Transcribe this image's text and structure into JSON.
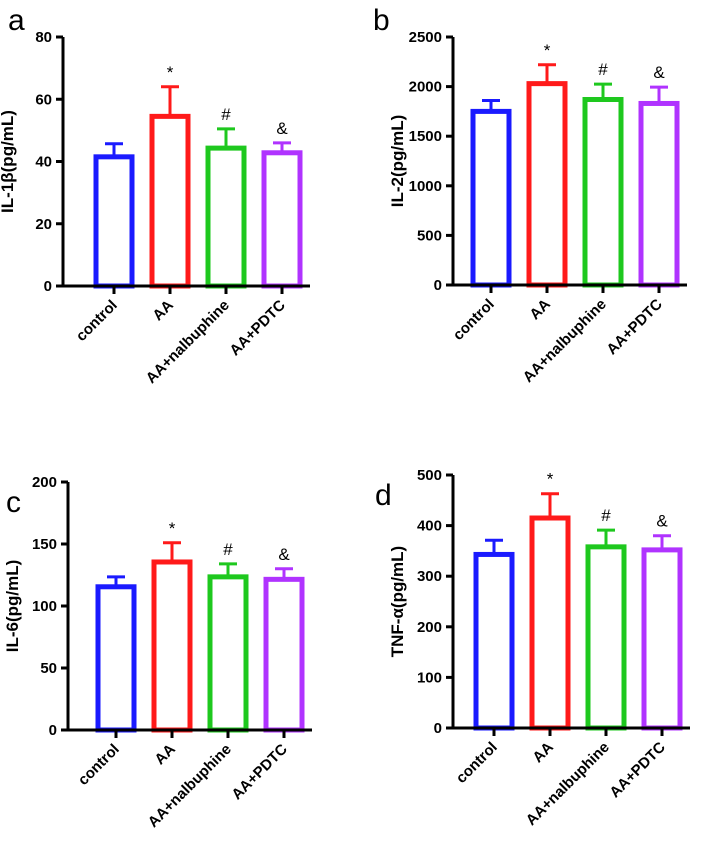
{
  "figure": {
    "categories": [
      "control",
      "AA",
      "AA+nalbuphine",
      "AA+PDTC"
    ],
    "colors": [
      "#1a1aff",
      "#ff1a1a",
      "#1ec81e",
      "#b033ff"
    ]
  },
  "chart_data": [
    {
      "type": "bar",
      "panel": "a",
      "title": "",
      "xlabel": "",
      "ylabel": "IL-1β(pg/mL)",
      "ylim": [
        0,
        80
      ],
      "yticks": [
        "0",
        "20",
        "40",
        "60",
        "80"
      ],
      "categories": [
        "control",
        "AA",
        "AA+nalbuphine",
        "AA+PDTC"
      ],
      "values": [
        41.5,
        54.5,
        44.3,
        42.8
      ],
      "errors": [
        4.2,
        9.5,
        6.2,
        3.2
      ],
      "annotations": [
        "",
        "*",
        "#",
        "&"
      ]
    },
    {
      "type": "bar",
      "panel": "b",
      "title": "",
      "xlabel": "",
      "ylabel": "IL-2(pg/mL)",
      "ylim": [
        0,
        2500
      ],
      "yticks": [
        "0",
        "500",
        "1000",
        "1500",
        "2000",
        "2500"
      ],
      "categories": [
        "control",
        "AA",
        "AA+nalbuphine",
        "AA+PDTC"
      ],
      "values": [
        1750,
        2030,
        1870,
        1830
      ],
      "errors": [
        110,
        190,
        155,
        165
      ],
      "annotations": [
        "",
        "*",
        "#",
        "&"
      ]
    },
    {
      "type": "bar",
      "panel": "c",
      "title": "",
      "xlabel": "",
      "ylabel": "IL-6(pg/mL)",
      "ylim": [
        0,
        200
      ],
      "yticks": [
        "0",
        "50",
        "100",
        "150",
        "200"
      ],
      "categories": [
        "control",
        "AA",
        "AA+nalbuphine",
        "AA+PDTC"
      ],
      "values": [
        115.5,
        135.5,
        123.5,
        121.5
      ],
      "errors": [
        8,
        15.5,
        10.5,
        8.5
      ],
      "annotations": [
        "",
        "*",
        "#",
        "&"
      ]
    },
    {
      "type": "bar",
      "panel": "d",
      "title": "",
      "xlabel": "",
      "ylabel": "TNF-α(pg/mL)",
      "ylim": [
        0,
        500
      ],
      "yticks": [
        "0",
        "100",
        "200",
        "300",
        "400",
        "500"
      ],
      "categories": [
        "control",
        "AA",
        "AA+nalbuphine",
        "AA+PDTC"
      ],
      "values": [
        343,
        415,
        358,
        352
      ],
      "errors": [
        28,
        48,
        33,
        28
      ],
      "annotations": [
        "",
        "*",
        "#",
        "&"
      ]
    }
  ]
}
